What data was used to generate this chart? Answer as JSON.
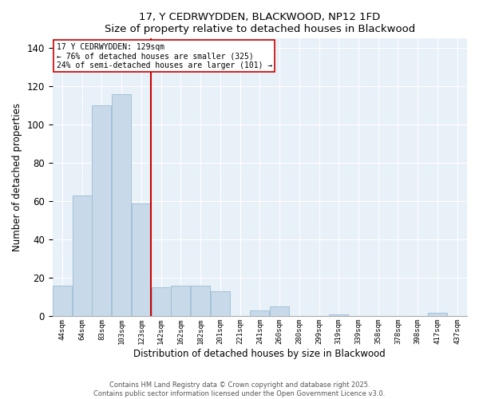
{
  "title": "17, Y CEDRWYDDEN, BLACKWOOD, NP12 1FD",
  "subtitle": "Size of property relative to detached houses in Blackwood",
  "xlabel": "Distribution of detached houses by size in Blackwood",
  "ylabel": "Number of detached properties",
  "bar_color": "#c8daea",
  "bar_edge_color": "#9bbcd4",
  "background_color": "#e8f0f8",
  "grid_color": "#ffffff",
  "annotation_line_color": "#cc0000",
  "annotation_property_value": 4,
  "annotation_text_line1": "17 Y CEDRWYDDEN: 129sqm",
  "annotation_text_line2": "← 76% of detached houses are smaller (325)",
  "annotation_text_line3": "24% of semi-detached houses are larger (101) →",
  "annotation_box_color": "#ffffff",
  "annotation_box_edge_color": "#cc0000",
  "categories": [
    "44sqm",
    "64sqm",
    "83sqm",
    "103sqm",
    "123sqm",
    "142sqm",
    "162sqm",
    "182sqm",
    "201sqm",
    "221sqm",
    "241sqm",
    "260sqm",
    "280sqm",
    "299sqm",
    "319sqm",
    "339sqm",
    "358sqm",
    "378sqm",
    "398sqm",
    "417sqm",
    "437sqm"
  ],
  "values": [
    16,
    63,
    110,
    116,
    59,
    15,
    16,
    16,
    13,
    0,
    3,
    5,
    0,
    0,
    1,
    0,
    0,
    0,
    0,
    2,
    0
  ],
  "ylim": [
    0,
    145
  ],
  "yticks": [
    0,
    20,
    40,
    60,
    80,
    100,
    120,
    140
  ],
  "footnote_line1": "Contains HM Land Registry data © Crown copyright and database right 2025.",
  "footnote_line2": "Contains public sector information licensed under the Open Government Licence v3.0."
}
